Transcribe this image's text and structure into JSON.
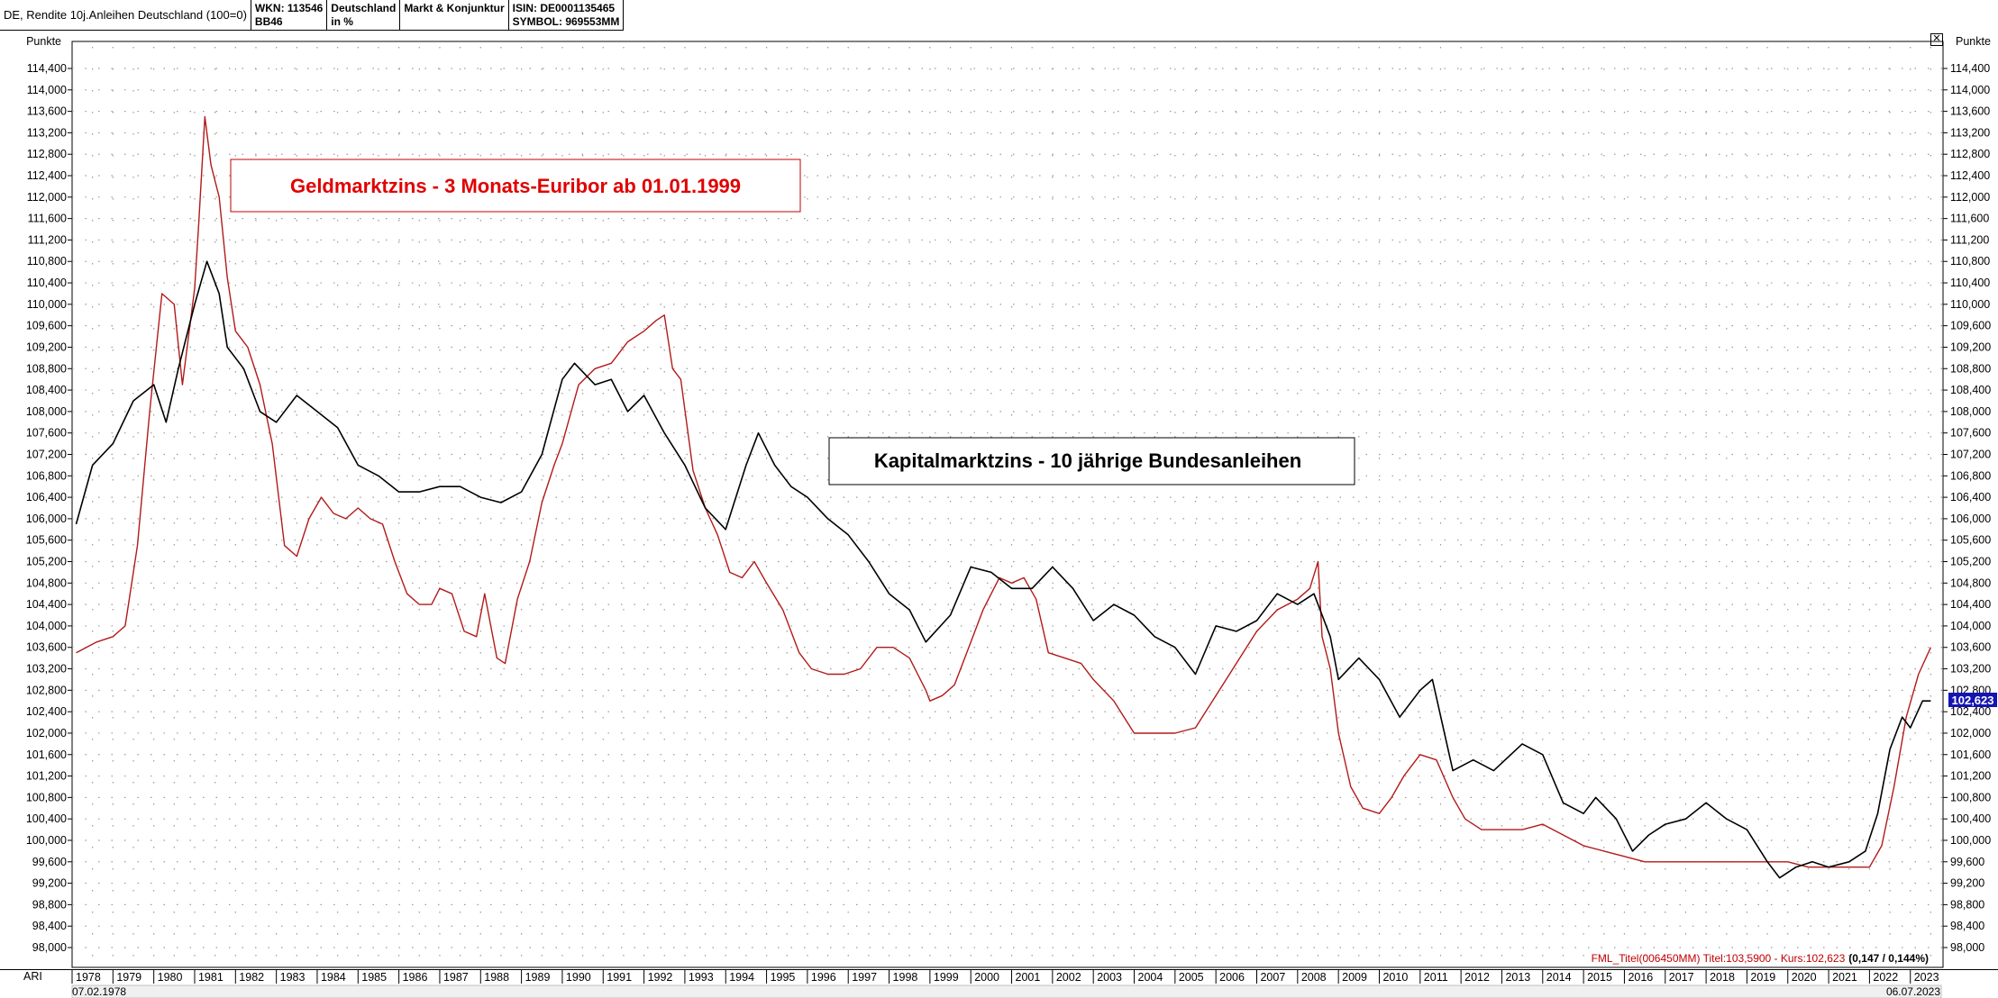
{
  "header": {
    "title": "DE, Rendite 10j.Anleihen Deutschland (100=0)",
    "wkn_line1": "WKN: 113546",
    "wkn_line2": "BB46",
    "region_line1": "Deutschland",
    "region_line2": "in %",
    "category": "Markt & Konjunktur",
    "isin": "ISIN: DE0001135465",
    "symbol": "SYMBOL: 969553MM"
  },
  "close_icon": "close-icon",
  "footer": {
    "left_code": "ARI",
    "start_date": "07.02.1978",
    "end_date": "06.07.2023",
    "info_red": "FML_Titel(006450MM) Titel:103,5900 - Kurs:102,623",
    "info_bold": "(0,147 / 0,144%)"
  },
  "chart_data": {
    "type": "line",
    "ylabel_left": "Punkte",
    "ylabel_right": "Punkte",
    "ylim": [
      97.8,
      114.6
    ],
    "xlim": [
      1978.0,
      2023.8
    ],
    "grid": "dotted",
    "y_ticks": [
      "114,400",
      "114,000",
      "113,600",
      "113,200",
      "112,800",
      "112,400",
      "112,000",
      "111,600",
      "111,200",
      "110,800",
      "110,400",
      "110,000",
      "109,600",
      "109,200",
      "108,800",
      "108,400",
      "108,000",
      "107,600",
      "107,200",
      "106,800",
      "106,400",
      "106,000",
      "105,600",
      "105,200",
      "104,800",
      "104,400",
      "104,000",
      "103,600",
      "103,200",
      "102,800",
      "102,400",
      "102,000",
      "101,600",
      "101,200",
      "100,800",
      "100,400",
      "100,000",
      "99,600",
      "99,200",
      "98,800",
      "98,400",
      "98,000"
    ],
    "y_tick_values": [
      114.4,
      114.0,
      113.6,
      113.2,
      112.8,
      112.4,
      112.0,
      111.6,
      111.2,
      110.8,
      110.4,
      110.0,
      109.6,
      109.2,
      108.8,
      108.4,
      108.0,
      107.6,
      107.2,
      106.8,
      106.4,
      106.0,
      105.6,
      105.2,
      104.8,
      104.4,
      104.0,
      103.6,
      103.2,
      102.8,
      102.4,
      102.0,
      101.6,
      101.2,
      100.8,
      100.4,
      100.0,
      99.6,
      99.2,
      98.8,
      98.4,
      98.0
    ],
    "x_ticks": [
      "1978",
      "1979",
      "1980",
      "1981",
      "1982",
      "1983",
      "1984",
      "1985",
      "1986",
      "1987",
      "1988",
      "1989",
      "1990",
      "1991",
      "1992",
      "1993",
      "1994",
      "1995",
      "1996",
      "1997",
      "1998",
      "1999",
      "2000",
      "2001",
      "2002",
      "2003",
      "2004",
      "2005",
      "2006",
      "2007",
      "2008",
      "2009",
      "2010",
      "2011",
      "2012",
      "2013",
      "2014",
      "2015",
      "2016",
      "2017",
      "2018",
      "2019",
      "2020",
      "2021",
      "2022",
      "2023"
    ],
    "last_value_label": "102,623",
    "annotations": [
      {
        "text": "Geldmarktzins - 3 Monats-Euribor ab 01.01.1999",
        "color": "#e00000"
      },
      {
        "text": "Kapitalmarktzins - 10 jährige Bundesanleihen",
        "color": "#000000"
      }
    ],
    "series": [
      {
        "color": "#000000",
        "x": [
          1978.1,
          1978.5,
          1979.0,
          1979.5,
          1980.0,
          1980.3,
          1980.6,
          1981.0,
          1981.3,
          1981.6,
          1981.8,
          1982.2,
          1982.6,
          1983.0,
          1983.5,
          1984.0,
          1984.5,
          1985.0,
          1985.5,
          1986.0,
          1986.5,
          1987.0,
          1987.5,
          1988.0,
          1988.5,
          1989.0,
          1989.5,
          1990.0,
          1990.3,
          1990.8,
          1991.2,
          1991.6,
          1992.0,
          1992.5,
          1993.0,
          1993.5,
          1994.0,
          1994.5,
          1994.8,
          1995.2,
          1995.6,
          1996.0,
          1996.5,
          1997.0,
          1997.5,
          1998.0,
          1998.5,
          1998.9,
          1999.5,
          2000.0,
          2000.5,
          2001.0,
          2001.5,
          2002.0,
          2002.5,
          2003.0,
          2003.5,
          2004.0,
          2004.5,
          2005.0,
          2005.5,
          2006.0,
          2006.5,
          2007.0,
          2007.5,
          2008.0,
          2008.4,
          2008.8,
          2009.0,
          2009.5,
          2010.0,
          2010.5,
          2011.0,
          2011.3,
          2011.8,
          2012.3,
          2012.8,
          2013.5,
          2014.0,
          2014.5,
          2015.0,
          2015.3,
          2015.8,
          2016.2,
          2016.6,
          2017.0,
          2017.5,
          2018.0,
          2018.5,
          2019.0,
          2019.5,
          2019.8,
          2020.2,
          2020.6,
          2021.0,
          2021.5,
          2021.9,
          2022.2,
          2022.5,
          2022.8,
          2023.0,
          2023.3,
          2023.5
        ],
        "y": [
          105.9,
          107.0,
          107.4,
          108.2,
          108.5,
          107.8,
          108.8,
          110.0,
          110.8,
          110.2,
          109.2,
          108.8,
          108.0,
          107.8,
          108.3,
          108.0,
          107.7,
          107.0,
          106.8,
          106.5,
          106.5,
          106.6,
          106.6,
          106.4,
          106.3,
          106.5,
          107.2,
          108.6,
          108.9,
          108.5,
          108.6,
          108.0,
          108.3,
          107.6,
          107.0,
          106.2,
          105.8,
          107.0,
          107.6,
          107.0,
          106.6,
          106.4,
          106.0,
          105.7,
          105.2,
          104.6,
          104.3,
          103.7,
          104.2,
          105.1,
          105.0,
          104.7,
          104.7,
          105.1,
          104.7,
          104.1,
          104.4,
          104.2,
          103.8,
          103.6,
          103.1,
          104.0,
          103.9,
          104.1,
          104.6,
          104.4,
          104.6,
          103.8,
          103.0,
          103.4,
          103.0,
          102.3,
          102.8,
          103.0,
          101.3,
          101.5,
          101.3,
          101.8,
          101.6,
          100.7,
          100.5,
          100.8,
          100.4,
          99.8,
          100.1,
          100.3,
          100.4,
          100.7,
          100.4,
          100.2,
          99.6,
          99.3,
          99.5,
          99.6,
          99.5,
          99.6,
          99.8,
          100.5,
          101.7,
          102.3,
          102.1,
          102.6,
          102.6
        ]
      },
      {
        "color": "#b21a1a",
        "x": [
          1978.1,
          1978.6,
          1979.0,
          1979.3,
          1979.6,
          1979.9,
          1980.2,
          1980.5,
          1980.7,
          1981.0,
          1981.1,
          1981.25,
          1981.4,
          1981.6,
          1981.8,
          1982.0,
          1982.3,
          1982.6,
          1982.9,
          1983.2,
          1983.5,
          1983.8,
          1984.1,
          1984.4,
          1984.7,
          1985.0,
          1985.3,
          1985.6,
          1985.9,
          1986.2,
          1986.5,
          1986.8,
          1987.0,
          1987.3,
          1987.6,
          1987.9,
          1988.1,
          1988.4,
          1988.6,
          1988.9,
          1989.2,
          1989.5,
          1989.8,
          1990.0,
          1990.4,
          1990.8,
          1991.2,
          1991.6,
          1992.0,
          1992.3,
          1992.5,
          1992.7,
          1992.9,
          1993.2,
          1993.5,
          1993.8,
          1994.1,
          1994.4,
          1994.7,
          1995.0,
          1995.4,
          1995.8,
          1996.1,
          1996.5,
          1996.9,
          1997.3,
          1997.7,
          1998.1,
          1998.5,
          1998.9,
          1999.0,
          1999.3,
          1999.6,
          1999.9,
          2000.3,
          2000.7,
          2001.0,
          2001.3,
          2001.6,
          2001.9,
          2002.3,
          2002.7,
          2003.0,
          2003.5,
          2004.0,
          2004.5,
          2005.0,
          2005.5,
          2006.0,
          2006.5,
          2007.0,
          2007.5,
          2008.0,
          2008.3,
          2008.5,
          2008.6,
          2008.8,
          2009.0,
          2009.3,
          2009.6,
          2010.0,
          2010.3,
          2010.6,
          2011.0,
          2011.4,
          2011.8,
          2012.1,
          2012.5,
          2013.0,
          2013.5,
          2014.0,
          2014.5,
          2015.0,
          2015.5,
          2016.0,
          2016.5,
          2017.0,
          2017.5,
          2018.0,
          2018.5,
          2019.0,
          2019.5,
          2020.0,
          2020.5,
          2021.0,
          2021.5,
          2022.0,
          2022.3,
          2022.6,
          2022.9,
          2023.2,
          2023.5
        ],
        "y": [
          103.5,
          103.7,
          103.8,
          104.0,
          105.5,
          108.0,
          110.2,
          110.0,
          108.5,
          110.3,
          111.5,
          113.5,
          112.6,
          112.0,
          110.5,
          109.5,
          109.2,
          108.5,
          107.4,
          105.5,
          105.3,
          106.0,
          106.4,
          106.1,
          106.0,
          106.2,
          106.0,
          105.9,
          105.2,
          104.6,
          104.4,
          104.4,
          104.7,
          104.6,
          103.9,
          103.8,
          104.6,
          103.4,
          103.3,
          104.5,
          105.2,
          106.3,
          107.0,
          107.4,
          108.5,
          108.8,
          108.9,
          109.3,
          109.5,
          109.7,
          109.8,
          108.8,
          108.6,
          106.9,
          106.2,
          105.7,
          105.0,
          104.9,
          105.2,
          104.8,
          104.3,
          103.5,
          103.2,
          103.1,
          103.1,
          103.2,
          103.6,
          103.6,
          103.4,
          102.8,
          102.6,
          102.7,
          102.9,
          103.5,
          104.3,
          104.9,
          104.8,
          104.9,
          104.5,
          103.5,
          103.4,
          103.3,
          103.0,
          102.6,
          102.0,
          102.0,
          102.0,
          102.1,
          102.7,
          103.3,
          103.9,
          104.3,
          104.5,
          104.7,
          105.2,
          103.8,
          103.2,
          102.0,
          101.0,
          100.6,
          100.5,
          100.8,
          101.2,
          101.6,
          101.5,
          100.8,
          100.4,
          100.2,
          100.2,
          100.2,
          100.3,
          100.1,
          99.9,
          99.8,
          99.7,
          99.6,
          99.6,
          99.6,
          99.6,
          99.6,
          99.6,
          99.6,
          99.6,
          99.5,
          99.5,
          99.5,
          99.5,
          99.9,
          101.0,
          102.3,
          103.1,
          103.6
        ]
      }
    ]
  }
}
